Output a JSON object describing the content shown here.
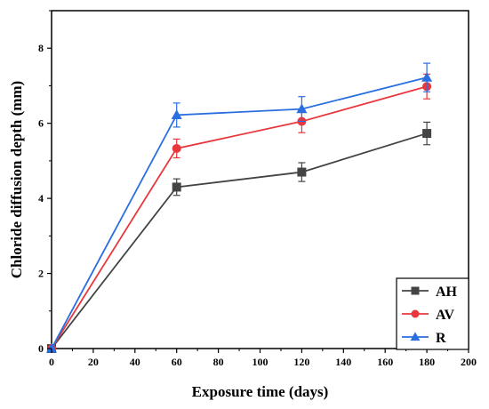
{
  "chart_data": {
    "type": "line",
    "xlabel": "Exposure time (days)",
    "ylabel": "Chloride diffusion depth (mm)",
    "xlim": [
      0,
      200
    ],
    "ylim": [
      0,
      9
    ],
    "xticks": [
      "0",
      "20",
      "40",
      "60",
      "80",
      "100",
      "120",
      "140",
      "160",
      "180",
      "200"
    ],
    "yticks": [
      "0",
      "2",
      "4",
      "6",
      "8"
    ],
    "grid": false,
    "legend_position": "bottom-right",
    "x": [
      0,
      60,
      120,
      180
    ],
    "series": [
      {
        "name": "AH",
        "color": "#444444",
        "marker": "square",
        "values": [
          0,
          4.3,
          4.7,
          5.73
        ],
        "errors": [
          0,
          0.22,
          0.25,
          0.3
        ]
      },
      {
        "name": "AV",
        "color": "#e8383d",
        "marker": "circle",
        "values": [
          0,
          5.33,
          6.05,
          6.98
        ],
        "errors": [
          0,
          0.25,
          0.3,
          0.33
        ]
      },
      {
        "name": "R",
        "color": "#2a6ee0",
        "marker": "triangle",
        "values": [
          0,
          6.22,
          6.38,
          7.22
        ],
        "errors": [
          0,
          0.32,
          0.33,
          0.38
        ]
      }
    ]
  }
}
